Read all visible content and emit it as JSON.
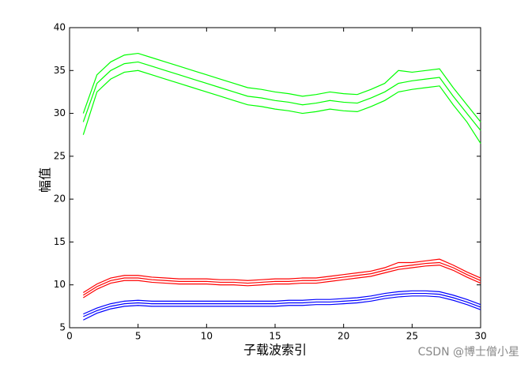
{
  "chart_data": {
    "type": "line",
    "x_label": "子载波索引",
    "y_label": "幅值",
    "watermark": "CSDN @博士僧小星",
    "x": [
      1,
      2,
      3,
      4,
      5,
      6,
      7,
      8,
      9,
      10,
      11,
      12,
      13,
      14,
      15,
      16,
      17,
      18,
      19,
      20,
      21,
      22,
      23,
      24,
      25,
      26,
      27,
      28,
      29,
      30
    ],
    "series": [
      {
        "color": "#00ff00",
        "values": [
          30,
          34.5,
          36,
          36.8,
          37,
          36.5,
          36,
          35.5,
          35,
          34.5,
          34,
          33.5,
          33,
          32.8,
          32.5,
          32.3,
          32,
          32.2,
          32.5,
          32.3,
          32.2,
          32.8,
          33.5,
          35,
          34.8,
          35,
          35.2,
          33,
          31,
          29
        ]
      },
      {
        "color": "#00ff00",
        "values": [
          29,
          33.5,
          35,
          35.8,
          36,
          35.5,
          35,
          34.5,
          34,
          33.5,
          33,
          32.5,
          32,
          31.8,
          31.5,
          31.3,
          31,
          31.2,
          31.5,
          31.3,
          31.2,
          31.8,
          32.5,
          33.5,
          33.8,
          34,
          34.2,
          32,
          30,
          28
        ]
      },
      {
        "color": "#00ff00",
        "values": [
          27.5,
          32.5,
          34,
          34.8,
          35,
          34.5,
          34,
          33.5,
          33,
          32.5,
          32,
          31.5,
          31,
          30.8,
          30.5,
          30.3,
          30,
          30.2,
          30.5,
          30.3,
          30.2,
          30.8,
          31.5,
          32.5,
          32.8,
          33,
          33.2,
          31,
          29,
          26.5
        ]
      },
      {
        "color": "#ff0000",
        "values": [
          9.1,
          10.1,
          10.8,
          11.1,
          11.1,
          10.9,
          10.8,
          10.7,
          10.7,
          10.7,
          10.6,
          10.6,
          10.5,
          10.6,
          10.7,
          10.7,
          10.8,
          10.8,
          11,
          11.2,
          11.4,
          11.6,
          12,
          12.6,
          12.6,
          12.8,
          13,
          12.3,
          11.5,
          10.8
        ]
      },
      {
        "color": "#ff0000",
        "values": [
          8.8,
          9.8,
          10.5,
          10.8,
          10.8,
          10.6,
          10.5,
          10.4,
          10.4,
          10.4,
          10.3,
          10.3,
          10.2,
          10.3,
          10.4,
          10.4,
          10.5,
          10.5,
          10.7,
          10.9,
          11.1,
          11.3,
          11.7,
          12.1,
          12.3,
          12.5,
          12.6,
          12,
          11.2,
          10.5
        ]
      },
      {
        "color": "#ff0000",
        "values": [
          8.5,
          9.5,
          10.2,
          10.5,
          10.5,
          10.3,
          10.2,
          10.1,
          10.1,
          10.1,
          10,
          10,
          9.9,
          10,
          10.1,
          10.1,
          10.2,
          10.2,
          10.4,
          10.6,
          10.8,
          11,
          11.4,
          11.8,
          12,
          12.2,
          12.3,
          11.7,
          10.9,
          10.2
        ]
      },
      {
        "color": "#0000ff",
        "values": [
          6.6,
          7.3,
          7.8,
          8.1,
          8.2,
          8.1,
          8.1,
          8.1,
          8.1,
          8.1,
          8.1,
          8.1,
          8.1,
          8.1,
          8.1,
          8.2,
          8.2,
          8.3,
          8.3,
          8.4,
          8.5,
          8.7,
          9,
          9.2,
          9.3,
          9.3,
          9.2,
          8.8,
          8.3,
          7.7
        ]
      },
      {
        "color": "#0000ff",
        "values": [
          6.3,
          7,
          7.5,
          7.8,
          7.9,
          7.8,
          7.8,
          7.8,
          7.8,
          7.8,
          7.8,
          7.8,
          7.8,
          7.8,
          7.8,
          7.9,
          7.9,
          8,
          8,
          8.1,
          8.2,
          8.4,
          8.7,
          8.9,
          9,
          9,
          8.9,
          8.5,
          8,
          7.4
        ]
      },
      {
        "color": "#0000ff",
        "values": [
          5.9,
          6.7,
          7.2,
          7.5,
          7.6,
          7.5,
          7.5,
          7.5,
          7.5,
          7.5,
          7.5,
          7.5,
          7.5,
          7.5,
          7.5,
          7.6,
          7.6,
          7.7,
          7.7,
          7.8,
          7.9,
          8.1,
          8.4,
          8.6,
          8.7,
          8.7,
          8.6,
          8.2,
          7.7,
          7.1
        ]
      }
    ],
    "xlim": [
      0,
      30
    ],
    "xticks": [
      0,
      5,
      10,
      15,
      20,
      25,
      30
    ],
    "ylim": [
      5,
      40
    ],
    "yticks": [
      5,
      10,
      15,
      20,
      25,
      30,
      35,
      40
    ]
  }
}
